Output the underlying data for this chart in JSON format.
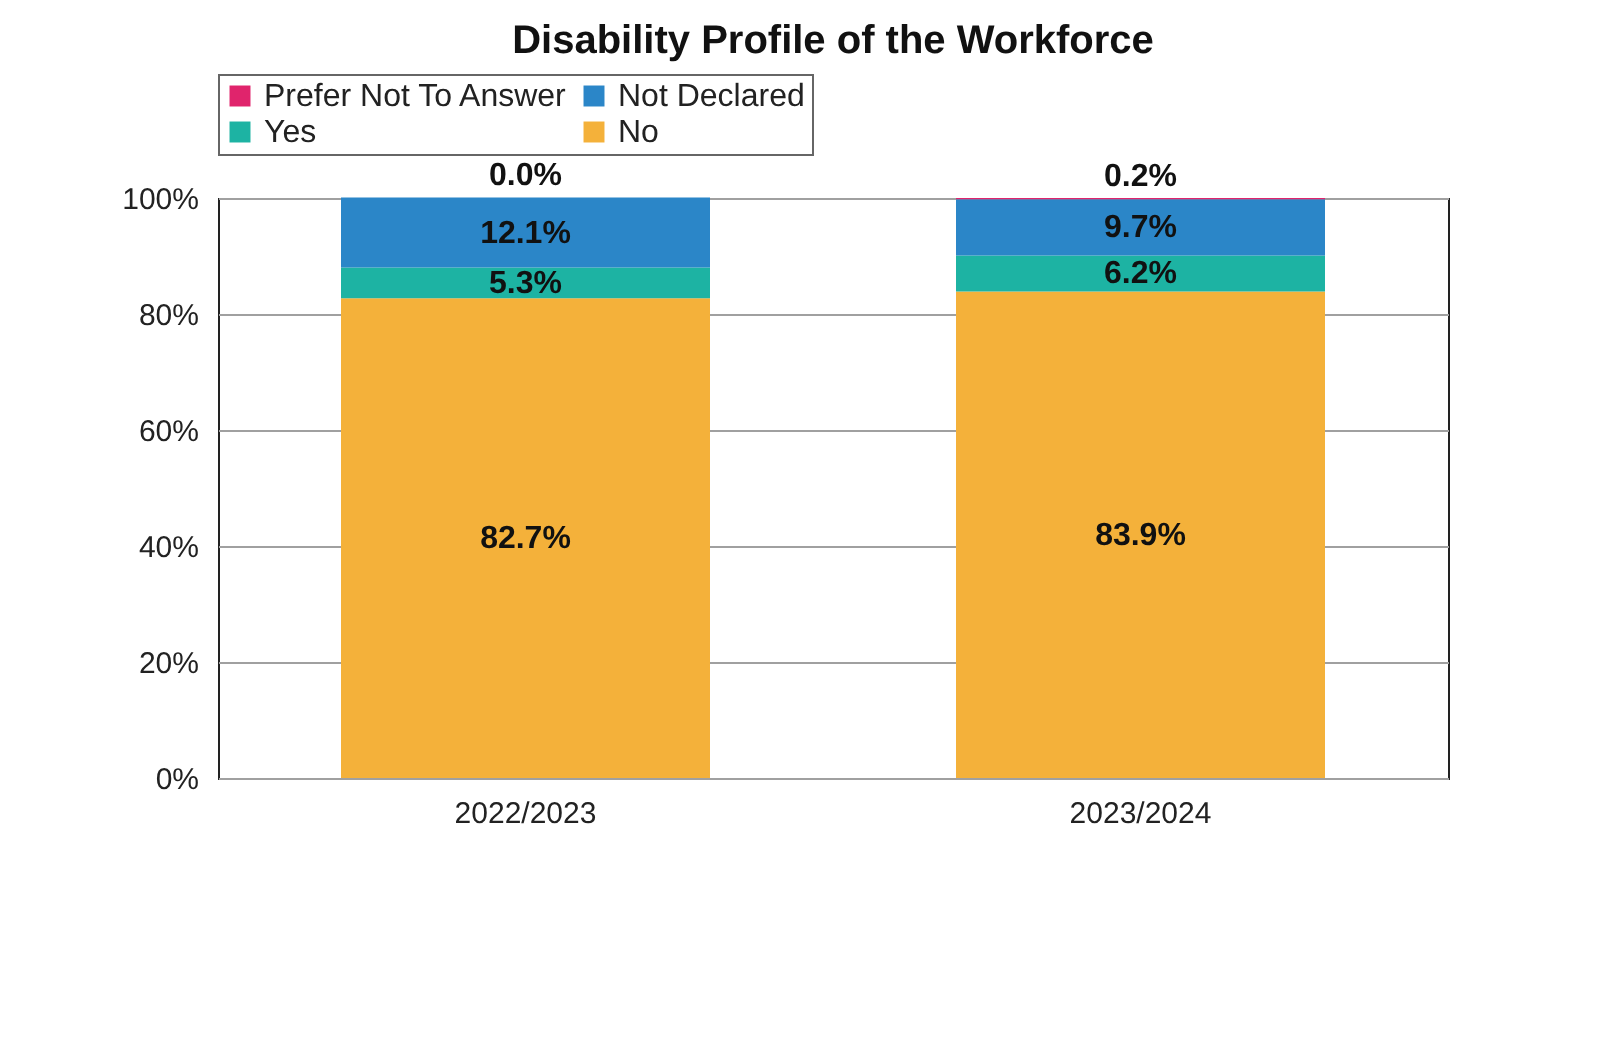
{
  "chart_data": {
    "type": "bar",
    "title": "Disability Profile of the Workforce",
    "stacked": true,
    "categories": [
      "2022/2023",
      "2023/2024"
    ],
    "series": [
      {
        "name": "No",
        "color": "#f4b13a",
        "values": [
          82.7,
          83.9
        ],
        "value_labels": [
          "82.7%",
          "83.9%"
        ]
      },
      {
        "name": "Yes",
        "color": "#1db3a3",
        "values": [
          5.3,
          6.2
        ],
        "value_labels": [
          "5.3%",
          "6.2%"
        ]
      },
      {
        "name": "Not Declared",
        "color": "#2b86c8",
        "values": [
          12.1,
          9.7
        ],
        "value_labels": [
          "12.1%",
          "9.7%"
        ]
      },
      {
        "name": "Prefer Not To Answer",
        "color": "#e0246c",
        "values": [
          0.0,
          0.2
        ],
        "value_labels": [
          "0.0%",
          "0.2%"
        ]
      }
    ],
    "ylim": [
      0,
      100
    ],
    "yticks": [
      {
        "value": 0,
        "label": "0%"
      },
      {
        "value": 20,
        "label": "20%"
      },
      {
        "value": 40,
        "label": "40%"
      },
      {
        "value": 60,
        "label": "60%"
      },
      {
        "value": 80,
        "label": "80%"
      },
      {
        "value": 100,
        "label": "100%"
      }
    ],
    "grid": "y",
    "legend": "top"
  }
}
